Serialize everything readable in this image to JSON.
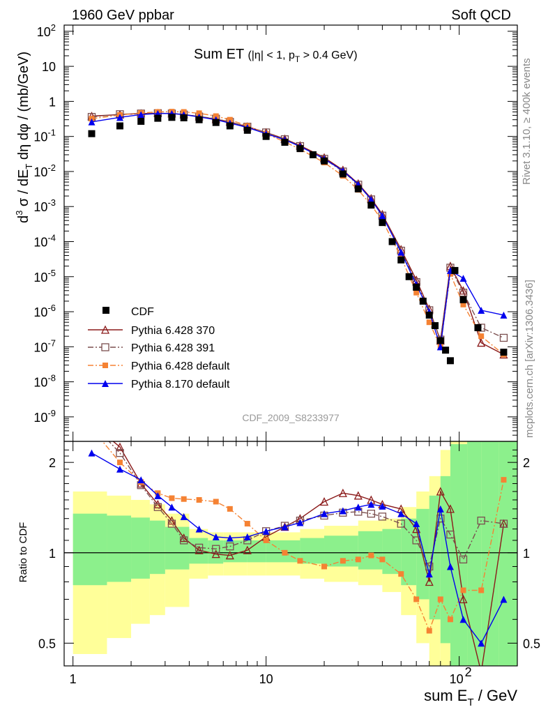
{
  "header": {
    "left": "1960 GeV ppbar",
    "right": "Soft QCD",
    "rivet": "Rivet 3.1.10, ≥ 400k events",
    "mcplots": "mcplots.cern.ch [arXiv:1306.3436]"
  },
  "chart_data": {
    "type": "scatter",
    "title_main": "Sum ET",
    "title_cut": "(|η| < 1, p",
    "title_cut_sub": "T",
    "title_cut_tail": " > 0.4 GeV)",
    "analysis_id": "CDF_2009_S8233977",
    "x_scale": "log",
    "xlim": [
      0.9,
      200
    ],
    "xlabel": "sum E",
    "xlabel_sub": "T",
    "xlabel_tail": " / GeV",
    "x_ticks": [
      "1",
      "10",
      "10",
      "2"
    ],
    "y_scale": "log",
    "ylim": [
      2e-10,
      150
    ],
    "ylabel": "d³σ / dE_T dη dφ / (mb/GeV)",
    "y_ticks": [
      {
        "base": "10",
        "exp": "2"
      },
      {
        "base": "10",
        "exp": ""
      },
      {
        "base": "1",
        "exp": ""
      },
      {
        "base": "10",
        "exp": "-1"
      },
      {
        "base": "10",
        "exp": "-2"
      },
      {
        "base": "10",
        "exp": "-3"
      },
      {
        "base": "10",
        "exp": "-4"
      },
      {
        "base": "10",
        "exp": "-5"
      },
      {
        "base": "10",
        "exp": "-6"
      },
      {
        "base": "10",
        "exp": "-7"
      },
      {
        "base": "10",
        "exp": "-8"
      },
      {
        "base": "10",
        "exp": "-9"
      }
    ],
    "legend_position": "bottom-left",
    "ratio": {
      "ylabel": "Ratio to CDF",
      "ylim": [
        0.42,
        2.35
      ],
      "y_ticks": [
        "0.5",
        "1",
        "2"
      ]
    },
    "colors": {
      "cdf": "#000000",
      "p370": "#8b1a1a",
      "p391": "#7b4f4f",
      "p6def": "#f58233",
      "p8def": "#0000ee",
      "band_inner": "#8cf08c",
      "band_outer": "#ffff99"
    },
    "cdf": {
      "name": "CDF",
      "x": [
        1.25,
        1.75,
        2.25,
        2.75,
        3.25,
        3.75,
        4.5,
        5.5,
        6.5,
        8,
        10,
        12.5,
        15,
        17.5,
        20,
        25,
        30,
        35,
        40,
        45,
        50,
        55,
        60,
        65,
        70,
        75,
        80,
        85,
        90,
        95,
        105,
        125,
        170
      ],
      "y": [
        0.12,
        0.2,
        0.27,
        0.33,
        0.35,
        0.34,
        0.3,
        0.25,
        0.2,
        0.15,
        0.1,
        0.068,
        0.045,
        0.03,
        0.02,
        0.0085,
        0.0032,
        0.0011,
        0.00035,
        0.0001,
        3e-05,
        1e-05,
        5e-06,
        2e-06,
        8e-07,
        4e-07,
        1.5e-07,
        8e-08,
        4e-08,
        1.5e-05,
        2.2e-06,
        3.5e-07,
        7e-08
      ]
    },
    "series": [
      {
        "name": "Pythia 6.428 370",
        "marker": "open-triangle",
        "line": "solid",
        "x": [
          1.25,
          1.75,
          2.25,
          2.75,
          3.25,
          3.75,
          4.5,
          5.5,
          6.5,
          8,
          10,
          12.5,
          15,
          20,
          25,
          30,
          35,
          40,
          50,
          60,
          70,
          80,
          90,
          105,
          130,
          170
        ],
        "y": [
          0.38,
          0.42,
          0.45,
          0.46,
          0.45,
          0.42,
          0.37,
          0.31,
          0.26,
          0.19,
          0.13,
          0.085,
          0.055,
          0.025,
          0.011,
          0.0045,
          0.0017,
          0.0006,
          6e-05,
          8e-06,
          1.2e-06,
          1.5e-07,
          2e-05,
          4e-06,
          1.3e-07,
          6e-08
        ],
        "ratio": [
          2.7,
          2.25,
          1.7,
          1.45,
          1.28,
          1.12,
          1.02,
          0.99,
          0.98,
          1.02,
          1.13,
          1.22,
          1.3,
          1.48,
          1.58,
          1.55,
          1.5,
          1.45,
          1.4,
          1.2,
          0.8,
          1.6,
          1.4,
          0.7,
          0.4,
          1.25
        ]
      },
      {
        "name": "Pythia 6.428 391",
        "marker": "open-square",
        "line": "dash-dot",
        "x": [
          1.25,
          1.75,
          2.25,
          2.75,
          3.25,
          3.75,
          4.5,
          5.5,
          6.5,
          8,
          10,
          12.5,
          15,
          20,
          25,
          30,
          35,
          40,
          50,
          60,
          70,
          80,
          90,
          105,
          130,
          170
        ],
        "y": [
          0.36,
          0.43,
          0.45,
          0.46,
          0.45,
          0.42,
          0.37,
          0.32,
          0.26,
          0.19,
          0.13,
          0.083,
          0.053,
          0.023,
          0.01,
          0.0042,
          0.0016,
          0.00055,
          5.5e-05,
          7e-06,
          1.1e-06,
          1.6e-07,
          1.8e-05,
          3.5e-06,
          3.5e-07,
          1.8e-07
        ],
        "ratio": [
          2.7,
          2.15,
          1.68,
          1.42,
          1.25,
          1.1,
          1.04,
          1.03,
          1.05,
          1.1,
          1.18,
          1.23,
          1.28,
          1.33,
          1.36,
          1.37,
          1.35,
          1.32,
          1.25,
          1.1,
          0.9,
          1.3,
          1.15,
          0.95,
          1.28,
          1.25
        ]
      },
      {
        "name": "Pythia 6.428 default",
        "marker": "filled-square",
        "line": "dash-dot",
        "x": [
          1.25,
          1.75,
          2.25,
          2.75,
          3.25,
          3.75,
          4.5,
          5.5,
          6.5,
          8,
          10,
          12.5,
          15,
          20,
          25,
          30,
          35,
          40,
          50,
          60,
          70,
          80,
          90,
          105,
          130,
          170
        ],
        "y": [
          0.32,
          0.41,
          0.47,
          0.5,
          0.51,
          0.5,
          0.46,
          0.38,
          0.3,
          0.2,
          0.12,
          0.07,
          0.043,
          0.018,
          0.0075,
          0.003,
          0.0011,
          0.0004,
          3.6e-05,
          3.5e-06,
          5e-07,
          1e-07,
          1.2e-05,
          1.6e-06,
          2e-07,
          6e-08
        ],
        "ratio": [
          2.6,
          2.0,
          1.72,
          1.58,
          1.52,
          1.51,
          1.5,
          1.48,
          1.4,
          1.25,
          1.1,
          1.0,
          0.94,
          0.9,
          0.94,
          0.95,
          0.98,
          0.95,
          0.85,
          0.7,
          0.55,
          0.7,
          0.6,
          0.75,
          0.75,
          1.75
        ]
      },
      {
        "name": "Pythia 8.170 default",
        "marker": "filled-triangle",
        "line": "solid",
        "x": [
          1.25,
          1.75,
          2.25,
          2.75,
          3.25,
          3.75,
          4.5,
          5.5,
          6.5,
          8,
          10,
          12.5,
          15,
          20,
          25,
          30,
          35,
          40,
          50,
          60,
          70,
          80,
          90,
          105,
          130,
          170
        ],
        "y": [
          0.26,
          0.35,
          0.42,
          0.45,
          0.45,
          0.42,
          0.36,
          0.3,
          0.24,
          0.18,
          0.12,
          0.08,
          0.052,
          0.023,
          0.0105,
          0.0043,
          0.0016,
          0.00055,
          5e-05,
          6e-06,
          1e-06,
          1e-07,
          1.5e-05,
          9e-06,
          1.1e-06,
          8e-07
        ],
        "ratio": [
          2.15,
          1.9,
          1.75,
          1.55,
          1.42,
          1.32,
          1.2,
          1.13,
          1.12,
          1.13,
          1.18,
          1.22,
          1.26,
          1.35,
          1.38,
          1.42,
          1.45,
          1.43,
          1.35,
          1.25,
          0.85,
          1.4,
          0.9,
          0.6,
          0.5,
          0.7
        ]
      }
    ],
    "uncertainty_band": {
      "x_edges": [
        1,
        1.5,
        2,
        2.5,
        3,
        4,
        5,
        6,
        8,
        10,
        15,
        20,
        30,
        40,
        50,
        60,
        70,
        80,
        90,
        110,
        130,
        160,
        200
      ],
      "inner_up": [
        1.35,
        1.33,
        1.31,
        1.28,
        1.22,
        1.12,
        1.1,
        1.1,
        1.1,
        1.1,
        1.12,
        1.14,
        1.18,
        1.2,
        1.3,
        1.4,
        1.55,
        1.8,
        2.3,
        2.5,
        2.5,
        2.5
      ],
      "inner_dn": [
        0.78,
        0.8,
        0.82,
        0.85,
        0.88,
        0.92,
        0.92,
        0.93,
        0.93,
        0.93,
        0.92,
        0.9,
        0.88,
        0.85,
        0.78,
        0.7,
        0.6,
        0.5,
        0.4,
        0.3,
        0.3,
        0.3
      ],
      "outer_up": [
        1.6,
        1.55,
        1.5,
        1.45,
        1.35,
        1.2,
        1.17,
        1.17,
        1.17,
        1.17,
        1.2,
        1.23,
        1.28,
        1.3,
        1.42,
        1.6,
        1.8,
        2.2,
        2.5,
        2.5,
        2.5,
        2.5
      ],
      "outer_dn": [
        0.46,
        0.52,
        0.58,
        0.62,
        0.66,
        0.82,
        0.84,
        0.84,
        0.84,
        0.84,
        0.82,
        0.8,
        0.78,
        0.74,
        0.62,
        0.5,
        0.4,
        0.3,
        0.3,
        0.3,
        0.3,
        0.3
      ]
    }
  }
}
